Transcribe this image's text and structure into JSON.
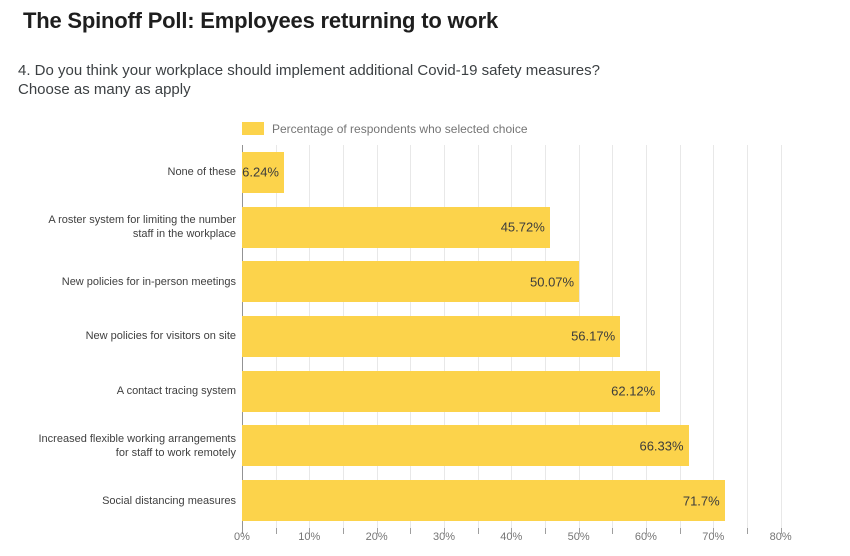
{
  "header": {
    "title": "The Spinoff Poll: Employees returning to work",
    "subtitle_line1": "4. Do you think your workplace should implement additional Covid-19 safety measures?",
    "subtitle_line2": "Choose as many as apply"
  },
  "legend": {
    "label": "Percentage of respondents who selected choice",
    "swatch_color": "#fcd34b"
  },
  "chart_data": {
    "type": "bar",
    "orientation": "horizontal",
    "title": "The Spinoff Poll: Employees returning to work",
    "subtitle": "4. Do you think your workplace should implement additional Covid-19 safety measures? Choose as many as apply",
    "series_name": "Percentage of respondents who selected choice",
    "categories": [
      "None of these",
      "A roster system for limiting the number staff in the workplace",
      "New policies for in-person meetings",
      "New policies for visitors on site",
      "A contact tracing system",
      "Increased flexible working arrangements for staff to work remotely",
      "Social distancing measures"
    ],
    "category_lines": [
      [
        "None of these"
      ],
      [
        "A roster system for limiting the number",
        "staff in the workplace"
      ],
      [
        "New policies for in-person meetings"
      ],
      [
        "New policies for visitors on site"
      ],
      [
        "A contact tracing system"
      ],
      [
        "Increased flexible working arrangements",
        "for staff to work remotely"
      ],
      [
        "Social distancing measures"
      ]
    ],
    "values": [
      6.24,
      45.72,
      50.07,
      56.17,
      62.12,
      66.33,
      71.7
    ],
    "value_labels": [
      "6.24%",
      "45.72%",
      "50.07%",
      "56.17%",
      "62.12%",
      "66.33%",
      "71.7%"
    ],
    "xlabel": "",
    "ylabel": "",
    "xlim": [
      0,
      80
    ],
    "x_tick_labels": [
      "0%",
      "10%",
      "20%",
      "30%",
      "40%",
      "50%",
      "60%",
      "70%",
      "80%"
    ],
    "x_major_tick_step": 10,
    "x_minor_tick_step": 5,
    "grid": true,
    "legend_position": "top",
    "bar_color": "#fcd34b",
    "background_color": "#ffffff"
  }
}
